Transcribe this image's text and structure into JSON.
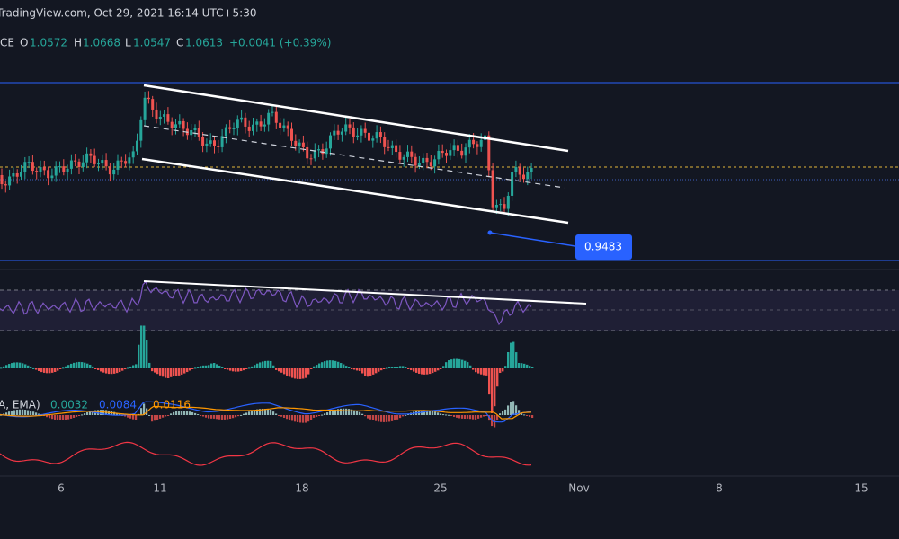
{
  "header": {
    "source": "TradingView.com, Oct 29, 2021 16:14 UTC+5:30"
  },
  "legend": {
    "symbol": "CE",
    "open_label": "O",
    "open": "1.0572",
    "high_label": "H",
    "high": "1.0668",
    "low_label": "L",
    "low": "1.0547",
    "close_label": "C",
    "close": "1.0613",
    "change": "+0.0041 (+0.39%)"
  },
  "price_label": "0.9483",
  "macd_legend": {
    "name": "A, EMA)",
    "values": [
      "0.0032",
      "0.0084",
      "0.0116"
    ]
  },
  "x_axis": [
    "6",
    "11",
    "18",
    "25",
    "Nov",
    "8",
    "15"
  ]
}
